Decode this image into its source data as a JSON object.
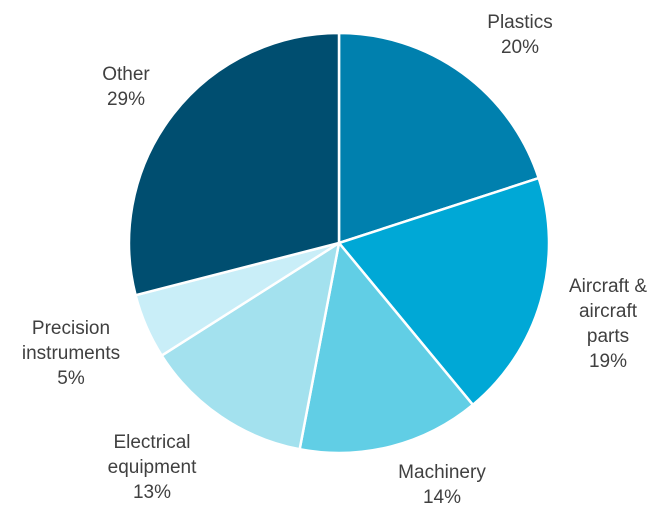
{
  "chart_data": {
    "type": "pie",
    "title": "",
    "start_angle_deg": 0,
    "direction": "clockwise",
    "slices": [
      {
        "label": [
          "Plastics"
        ],
        "value": 20,
        "value_label": "20%",
        "color": "#0080AE"
      },
      {
        "label": [
          "Aircraft &",
          "aircraft",
          "parts"
        ],
        "value": 19,
        "value_label": "19%",
        "color": "#00A8D6"
      },
      {
        "label": [
          "Machinery"
        ],
        "value": 14,
        "value_label": "14%",
        "color": "#61CEE5"
      },
      {
        "label": [
          "Electrical",
          "equipment"
        ],
        "value": 13,
        "value_label": "13%",
        "color": "#A3E1EE"
      },
      {
        "label": [
          "Precision",
          "instruments"
        ],
        "value": 5,
        "value_label": "5%",
        "color": "#C9EEF8"
      },
      {
        "label": [
          "Other"
        ],
        "value": 29,
        "value_label": "29%",
        "color": "#004E70"
      }
    ],
    "border_color": "#FFFFFF",
    "label_color": "#404040"
  }
}
